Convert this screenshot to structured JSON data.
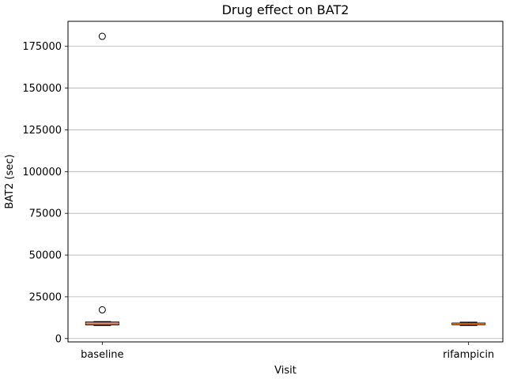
{
  "chart_data": {
    "type": "box",
    "title": "Drug effect on BAT2",
    "xlabel": "Visit",
    "ylabel": "BAT2 (sec)",
    "categories": [
      "baseline",
      "rifampicin"
    ],
    "ylim": [
      -2000,
      190000
    ],
    "yticks": [
      0,
      25000,
      50000,
      75000,
      100000,
      125000,
      150000,
      175000
    ],
    "grid": "horizontal",
    "boxes": [
      {
        "category": "baseline",
        "whisker_low": 7800,
        "q1": 8200,
        "median": 9000,
        "q3": 9900,
        "whisker_high": 10200,
        "outliers": [
          17200,
          181000
        ]
      },
      {
        "category": "rifampicin",
        "whisker_low": 7800,
        "q1": 8300,
        "median": 8800,
        "q3": 9300,
        "whisker_high": 9800,
        "outliers": []
      }
    ],
    "colors": {
      "box_face": "#d7a0a0",
      "box_edge": "#000000",
      "median": "#ff7f0e",
      "grid": "#b0b0b0",
      "outlier_edge": "#000000"
    }
  }
}
